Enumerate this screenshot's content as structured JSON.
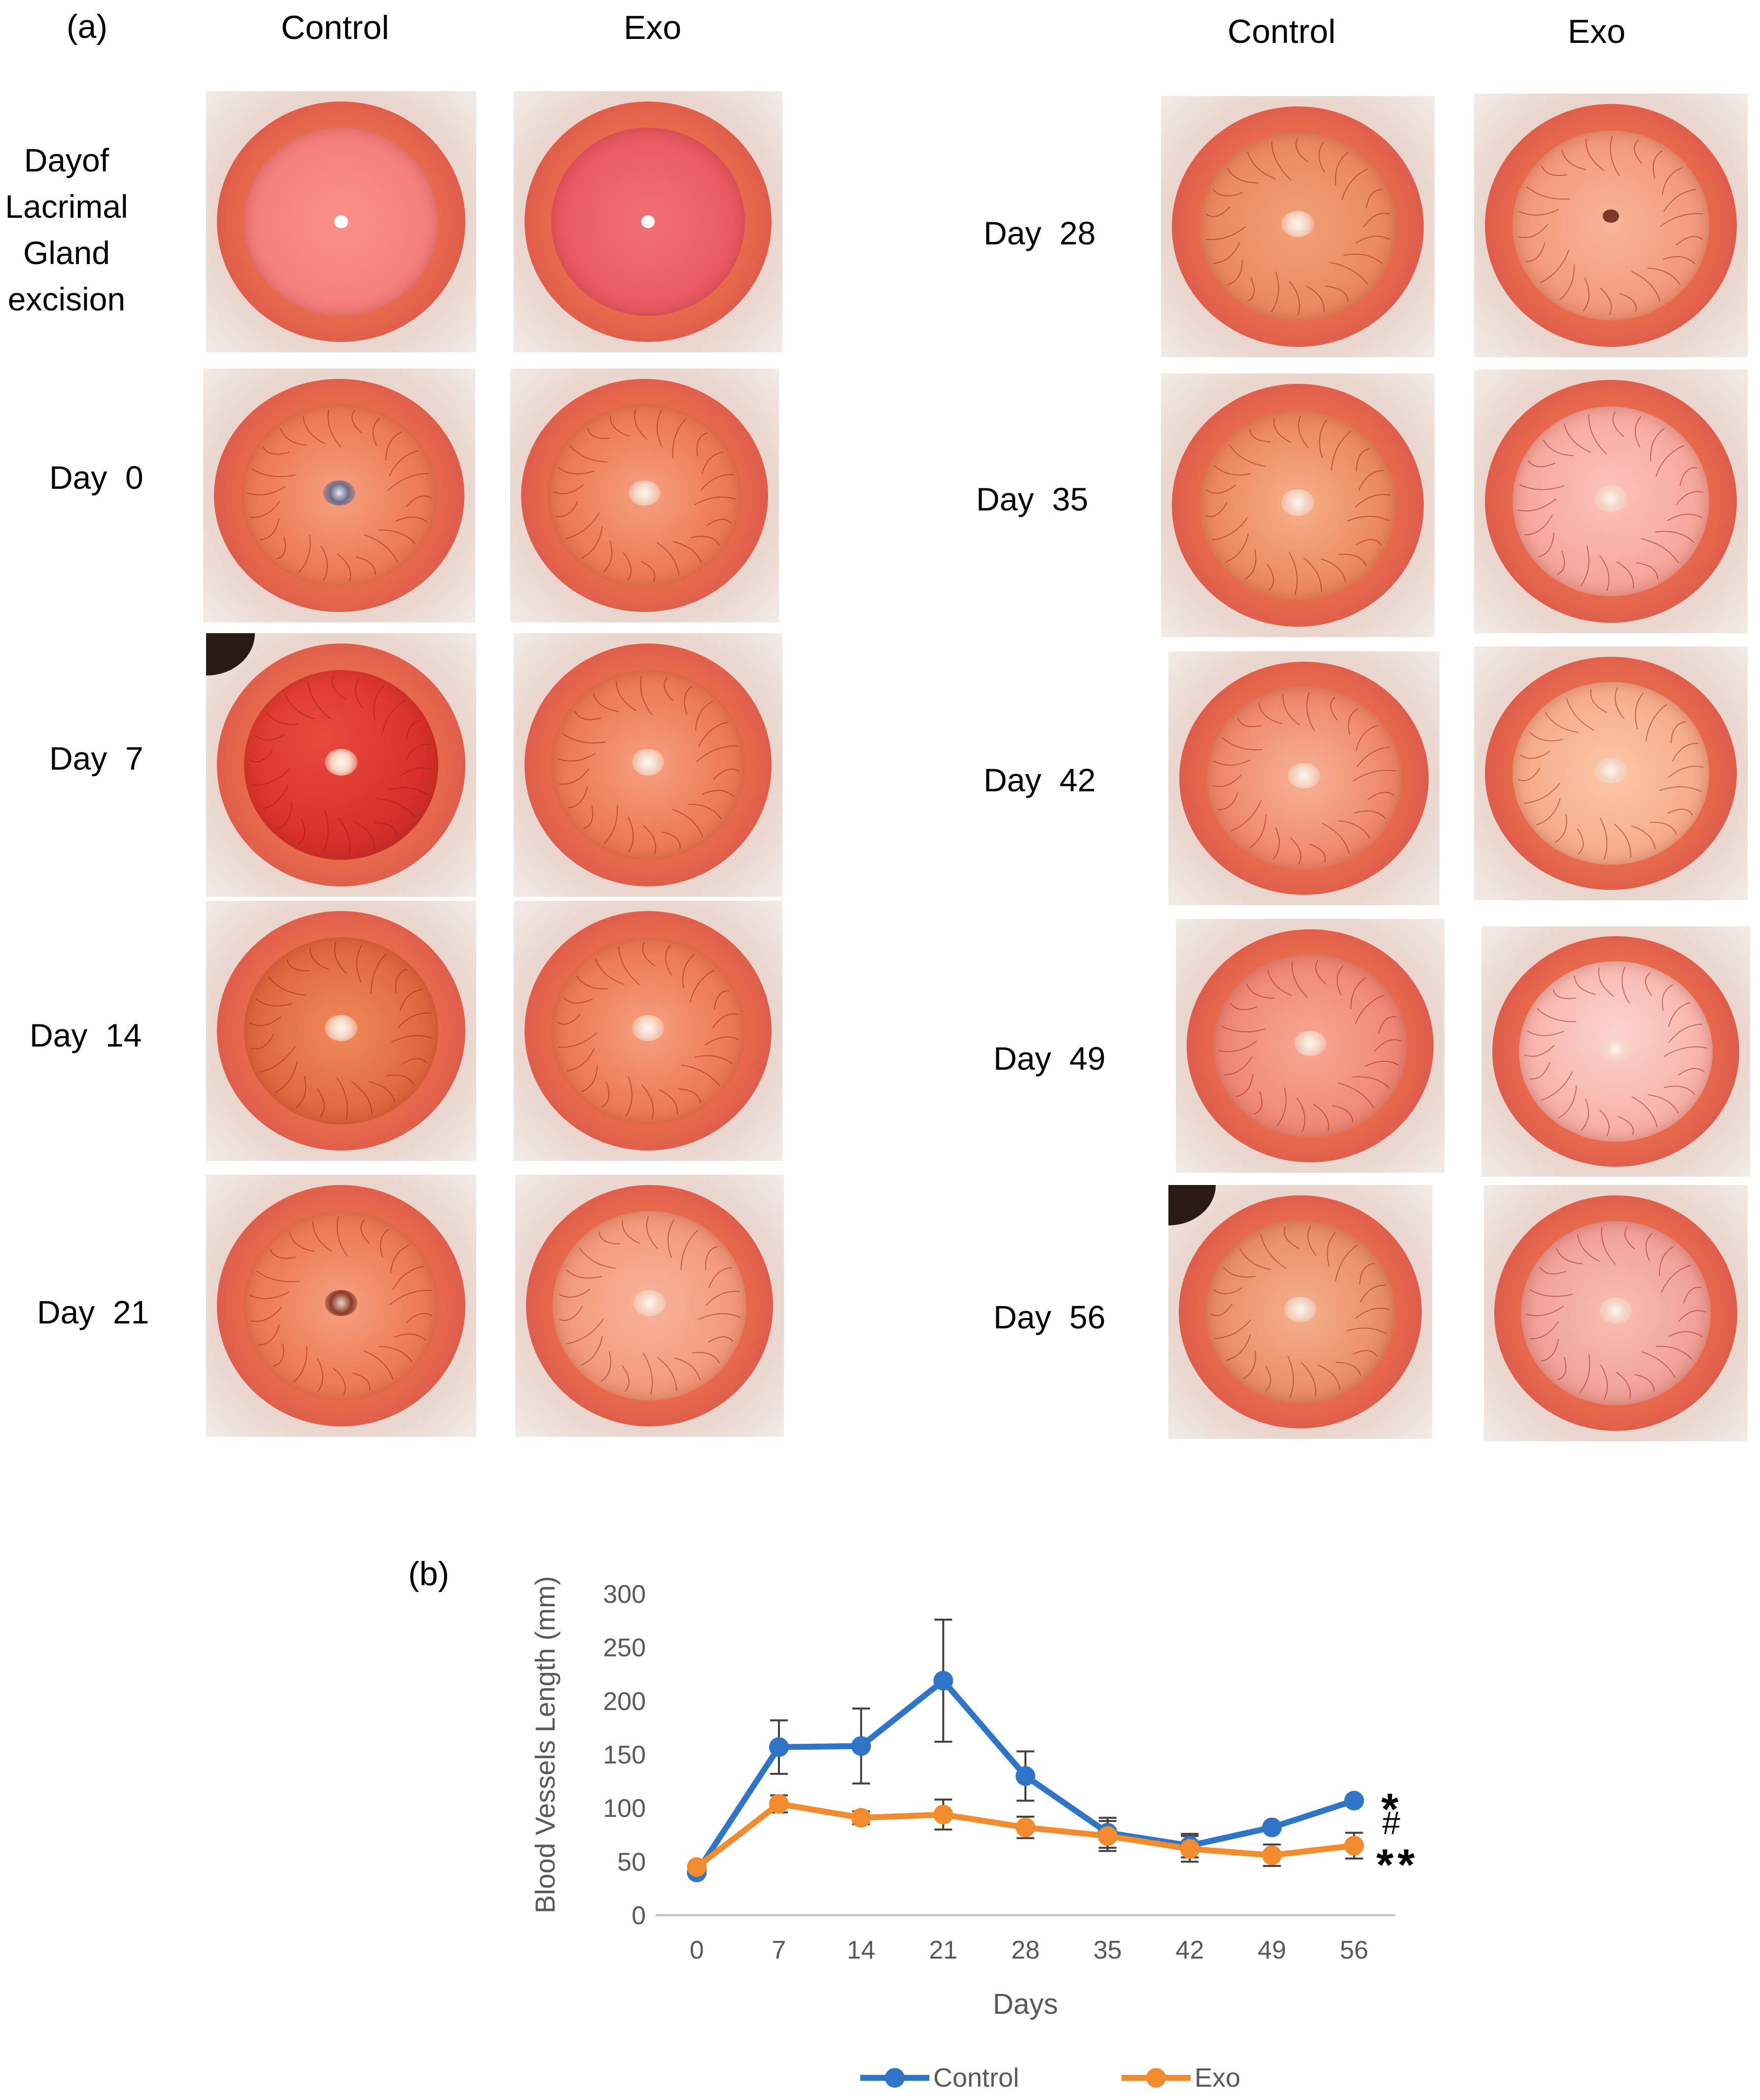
{
  "panel_a": {
    "label": "(a)",
    "left_headers": {
      "control": "Control",
      "exo": "Exo"
    },
    "right_headers": {
      "control": "Control",
      "exo": "Exo"
    },
    "left_rows": [
      {
        "label": "Dayof Lacrimal Gland excision",
        "lines": [
          "Dayof",
          "Lacrimal",
          "Gland",
          "excision"
        ]
      },
      {
        "label": "Day  0"
      },
      {
        "label": "Day  7"
      },
      {
        "label": "Day  14"
      },
      {
        "label": "Day  21"
      }
    ],
    "right_rows": [
      {
        "label": "Day  28"
      },
      {
        "label": "Day  35"
      },
      {
        "label": "Day  42"
      },
      {
        "label": "Day  49"
      },
      {
        "label": "Day  56"
      }
    ]
  },
  "panel_b": {
    "label": "(b)"
  },
  "chart_data": {
    "type": "line",
    "title": "",
    "xlabel": "Days",
    "ylabel": "Blood Vessels Length (mm)",
    "categories": [
      "0",
      "7",
      "14",
      "21",
      "28",
      "35",
      "42",
      "49",
      "56"
    ],
    "ylim": [
      0,
      300
    ],
    "yticks": [
      0,
      50,
      100,
      150,
      200,
      250,
      300
    ],
    "grid": false,
    "legend_position": "bottom",
    "series": [
      {
        "name": "Control",
        "color": "#2e75c8",
        "values": [
          40,
          157,
          158,
          219,
          130,
          77,
          65,
          82,
          107
        ],
        "errors": [
          0,
          25,
          35,
          57,
          23,
          14,
          11,
          0,
          0
        ]
      },
      {
        "name": "Exo",
        "color": "#f28a2e",
        "values": [
          45,
          104,
          91,
          94,
          82,
          74,
          62,
          56,
          65
        ],
        "errors": [
          0,
          8,
          6,
          14,
          10,
          14,
          12,
          10,
          12
        ]
      }
    ],
    "annotations": [
      "*",
      "#",
      "**"
    ]
  }
}
